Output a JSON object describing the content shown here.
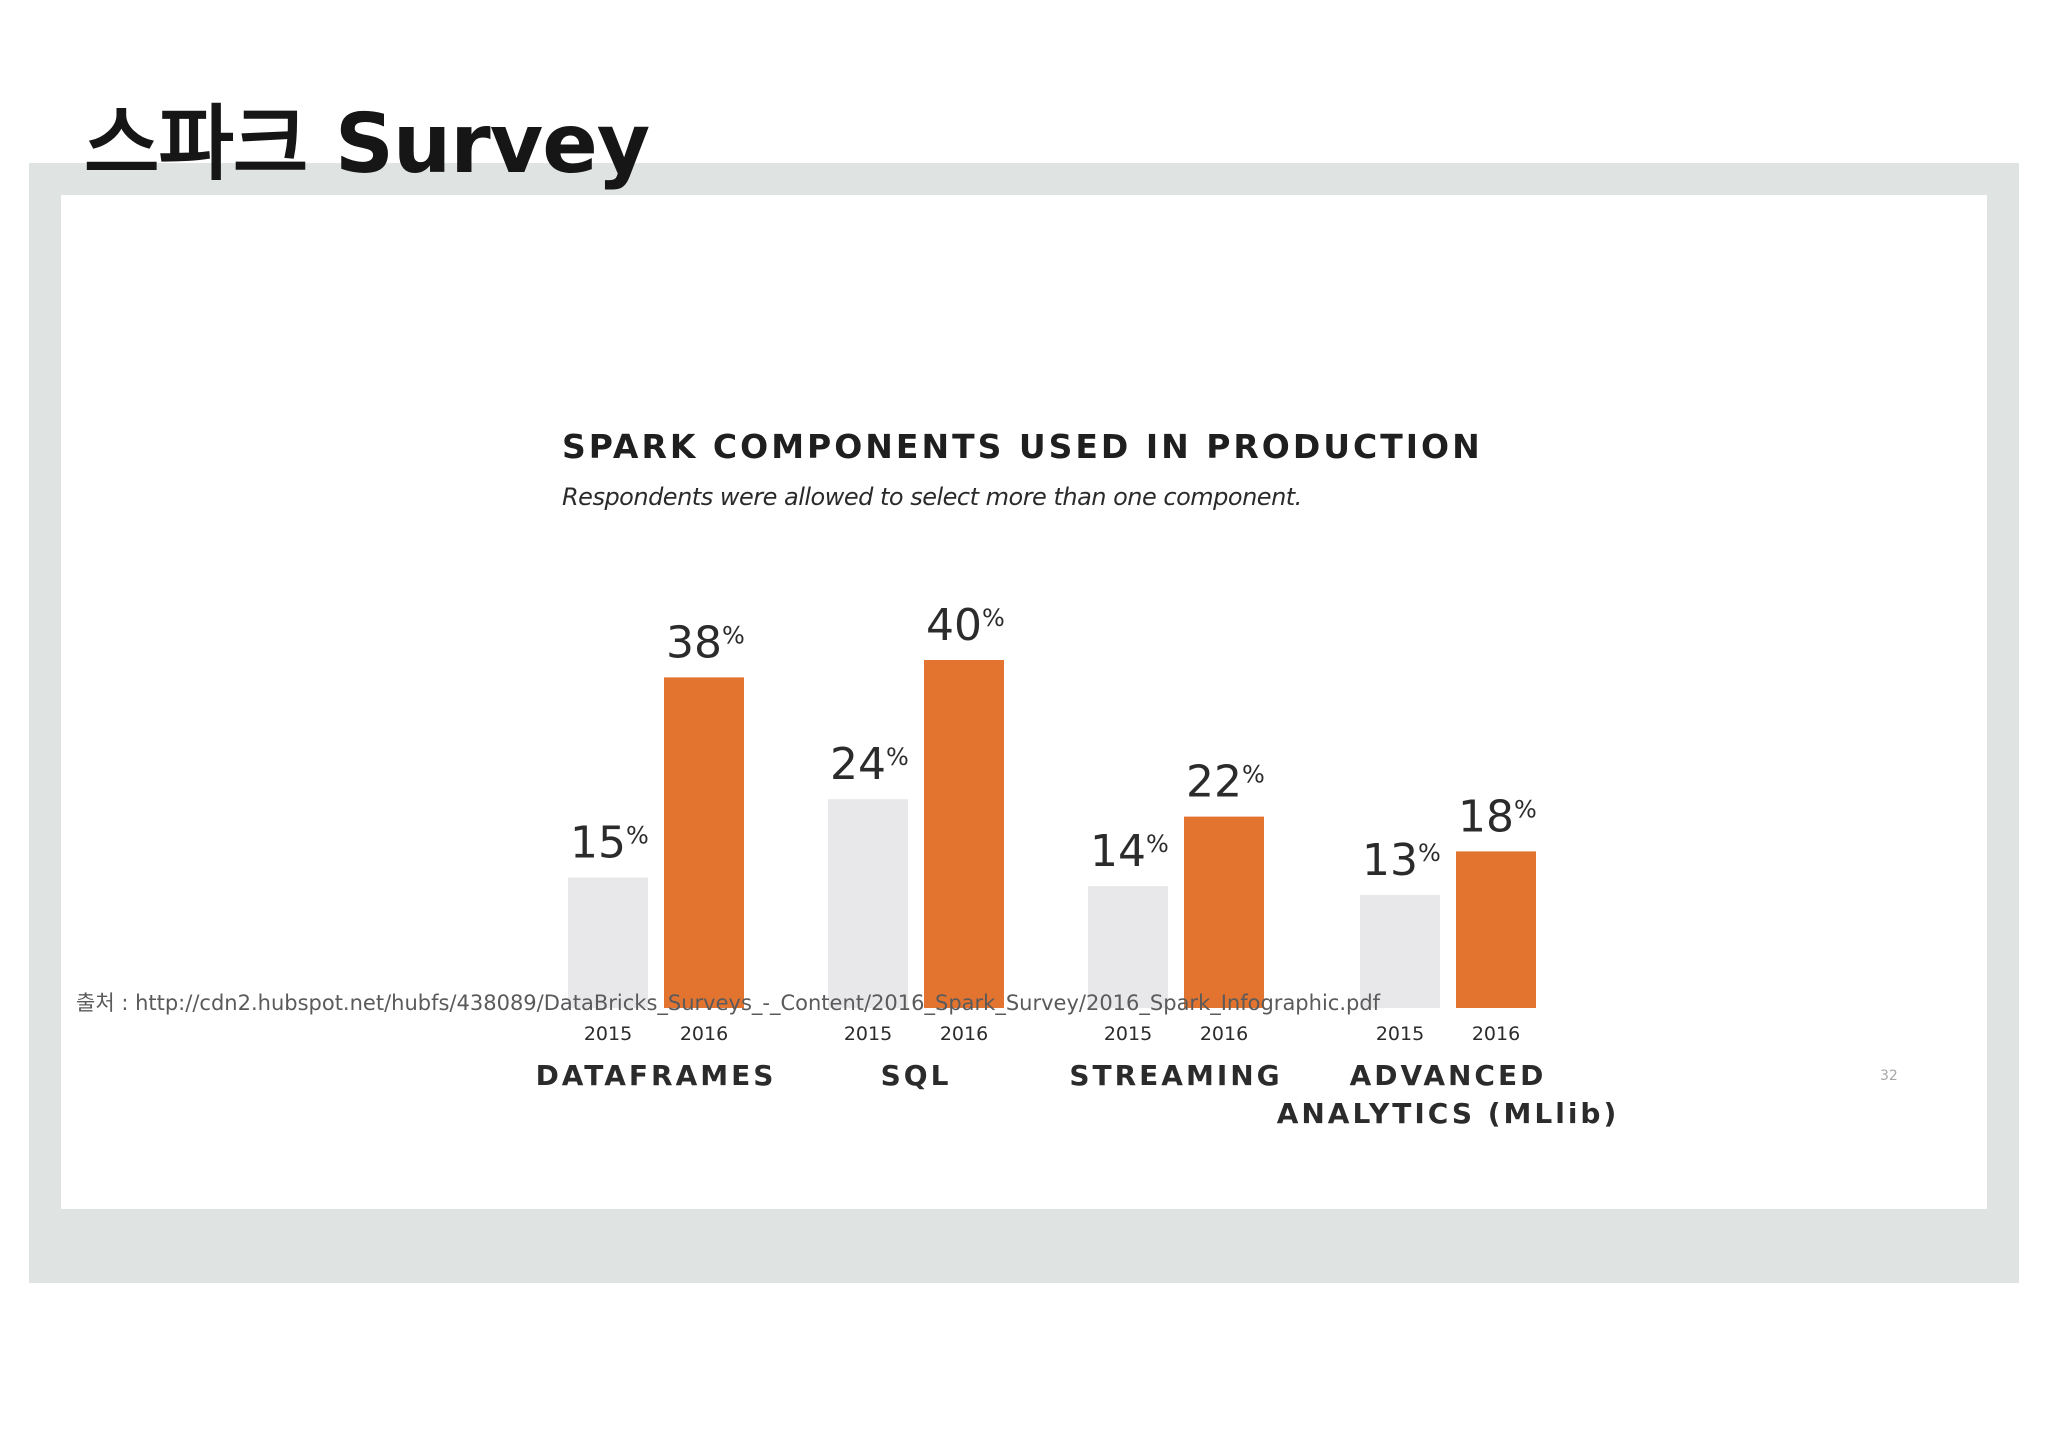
{
  "slide": {
    "title": "스파크 Survey",
    "source_prefix": "출처 : ",
    "source_url": "http://cdn2.hubspot.net/hubfs/438089/DataBricks_Surveys_-_Content/2016_Spark_Survey/2016_Spark_Infographic.pdf",
    "page_number": "32"
  },
  "chart_data": {
    "type": "bar",
    "title": "SPARK COMPONENTS USED IN PRODUCTION",
    "subtitle": "Respondents were allowed to select more than one component.",
    "categories": [
      {
        "lines": [
          "DATAFRAMES"
        ]
      },
      {
        "lines": [
          "SQL"
        ]
      },
      {
        "lines": [
          "STREAMING"
        ]
      },
      {
        "lines": [
          "ADVANCED",
          "ANALYTICS (MLlib)"
        ]
      }
    ],
    "series": [
      {
        "name": "2015",
        "color": "#e8e8ea",
        "values": [
          15,
          24,
          14,
          13
        ]
      },
      {
        "name": "2016",
        "color": "#e37430",
        "values": [
          38,
          40,
          22,
          18
        ]
      }
    ],
    "value_suffix": "%",
    "ylim": [
      0,
      40
    ],
    "xlabel": "",
    "ylabel": "",
    "grid": false,
    "legend": "none"
  }
}
